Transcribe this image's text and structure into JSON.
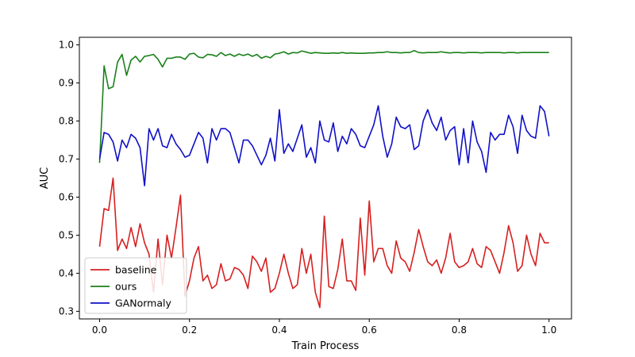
{
  "chart_data": {
    "type": "line",
    "xlabel": "Train Process",
    "ylabel": "AUC",
    "xlim": [
      -0.045,
      1.05
    ],
    "ylim": [
      0.28,
      1.02
    ],
    "grid": false,
    "legend_position": "lower-left",
    "xticks": [
      "0.0",
      "0.2",
      "0.4",
      "0.6",
      "0.8",
      "1.0"
    ],
    "yticks": [
      "0.3",
      "0.4",
      "0.5",
      "0.6",
      "0.7",
      "0.8",
      "0.9",
      "1.0"
    ],
    "series": [
      {
        "name": "baseline",
        "color": "#d62020",
        "x": [
          0.0,
          0.01,
          0.02,
          0.03,
          0.04,
          0.05,
          0.06,
          0.07,
          0.08,
          0.09,
          0.1,
          0.11,
          0.12,
          0.13,
          0.14,
          0.15,
          0.16,
          0.17,
          0.18,
          0.19,
          0.2,
          0.21,
          0.22,
          0.23,
          0.24,
          0.25,
          0.26,
          0.27,
          0.28,
          0.29,
          0.3,
          0.31,
          0.32,
          0.33,
          0.34,
          0.35,
          0.36,
          0.37,
          0.38,
          0.39,
          0.4,
          0.41,
          0.42,
          0.43,
          0.44,
          0.45,
          0.46,
          0.47,
          0.48,
          0.49,
          0.5,
          0.51,
          0.52,
          0.53,
          0.54,
          0.55,
          0.56,
          0.57,
          0.58,
          0.59,
          0.6,
          0.61,
          0.62,
          0.63,
          0.64,
          0.65,
          0.66,
          0.67,
          0.68,
          0.69,
          0.7,
          0.71,
          0.72,
          0.73,
          0.74,
          0.75,
          0.76,
          0.77,
          0.78,
          0.79,
          0.8,
          0.81,
          0.82,
          0.83,
          0.84,
          0.85,
          0.86,
          0.87,
          0.88,
          0.89,
          0.9,
          0.91,
          0.92,
          0.93,
          0.94,
          0.95,
          0.96,
          0.97,
          0.98,
          0.99,
          1.0
        ],
        "values": [
          0.47,
          0.57,
          0.565,
          0.65,
          0.46,
          0.49,
          0.465,
          0.52,
          0.47,
          0.53,
          0.48,
          0.45,
          0.35,
          0.49,
          0.37,
          0.5,
          0.44,
          0.52,
          0.605,
          0.34,
          0.38,
          0.44,
          0.47,
          0.38,
          0.395,
          0.36,
          0.37,
          0.425,
          0.38,
          0.385,
          0.415,
          0.41,
          0.395,
          0.36,
          0.445,
          0.43,
          0.405,
          0.44,
          0.35,
          0.36,
          0.4,
          0.45,
          0.4,
          0.36,
          0.37,
          0.465,
          0.4,
          0.45,
          0.35,
          0.31,
          0.55,
          0.365,
          0.36,
          0.41,
          0.49,
          0.38,
          0.38,
          0.355,
          0.545,
          0.395,
          0.59,
          0.43,
          0.465,
          0.465,
          0.42,
          0.4,
          0.485,
          0.44,
          0.43,
          0.405,
          0.455,
          0.515,
          0.47,
          0.43,
          0.42,
          0.435,
          0.4,
          0.44,
          0.505,
          0.43,
          0.415,
          0.42,
          0.43,
          0.465,
          0.425,
          0.415,
          0.47,
          0.46,
          0.43,
          0.4,
          0.455,
          0.525,
          0.48,
          0.405,
          0.42,
          0.5,
          0.45,
          0.42,
          0.505,
          0.48,
          0.48
        ]
      },
      {
        "name": "ours",
        "color": "#1a801a",
        "x": [
          0.0,
          0.01,
          0.02,
          0.03,
          0.04,
          0.05,
          0.06,
          0.07,
          0.08,
          0.09,
          0.1,
          0.11,
          0.12,
          0.13,
          0.14,
          0.15,
          0.16,
          0.17,
          0.18,
          0.19,
          0.2,
          0.21,
          0.22,
          0.23,
          0.24,
          0.25,
          0.26,
          0.27,
          0.28,
          0.29,
          0.3,
          0.31,
          0.32,
          0.33,
          0.34,
          0.35,
          0.36,
          0.37,
          0.38,
          0.39,
          0.4,
          0.41,
          0.42,
          0.43,
          0.44,
          0.45,
          0.46,
          0.47,
          0.48,
          0.49,
          0.5,
          0.51,
          0.52,
          0.53,
          0.54,
          0.55,
          0.56,
          0.57,
          0.58,
          0.59,
          0.6,
          0.61,
          0.62,
          0.63,
          0.64,
          0.65,
          0.66,
          0.67,
          0.68,
          0.69,
          0.7,
          0.71,
          0.72,
          0.73,
          0.74,
          0.75,
          0.76,
          0.77,
          0.78,
          0.79,
          0.8,
          0.81,
          0.82,
          0.83,
          0.84,
          0.85,
          0.86,
          0.87,
          0.88,
          0.89,
          0.9,
          0.91,
          0.92,
          0.93,
          0.94,
          0.95,
          0.96,
          0.97,
          0.98,
          0.99,
          1.0
        ],
        "values": [
          0.69,
          0.945,
          0.885,
          0.89,
          0.955,
          0.975,
          0.92,
          0.96,
          0.97,
          0.955,
          0.97,
          0.972,
          0.975,
          0.962,
          0.942,
          0.965,
          0.965,
          0.968,
          0.968,
          0.962,
          0.976,
          0.978,
          0.968,
          0.966,
          0.975,
          0.974,
          0.97,
          0.98,
          0.972,
          0.976,
          0.97,
          0.976,
          0.972,
          0.976,
          0.97,
          0.975,
          0.965,
          0.97,
          0.966,
          0.976,
          0.978,
          0.982,
          0.976,
          0.98,
          0.979,
          0.984,
          0.981,
          0.978,
          0.98,
          0.979,
          0.978,
          0.978,
          0.979,
          0.978,
          0.98,
          0.978,
          0.979,
          0.978,
          0.978,
          0.978,
          0.979,
          0.979,
          0.98,
          0.98,
          0.982,
          0.98,
          0.98,
          0.979,
          0.98,
          0.98,
          0.985,
          0.98,
          0.979,
          0.98,
          0.98,
          0.98,
          0.982,
          0.98,
          0.979,
          0.98,
          0.98,
          0.979,
          0.98,
          0.98,
          0.98,
          0.979,
          0.98,
          0.98,
          0.98,
          0.98,
          0.979,
          0.98,
          0.98,
          0.979,
          0.98,
          0.98,
          0.98,
          0.98,
          0.98,
          0.98,
          0.98
        ]
      },
      {
        "name": "GANormaly",
        "color": "#1010c8",
        "x": [
          0.0,
          0.01,
          0.02,
          0.03,
          0.04,
          0.05,
          0.06,
          0.07,
          0.08,
          0.09,
          0.1,
          0.11,
          0.12,
          0.13,
          0.14,
          0.15,
          0.16,
          0.17,
          0.18,
          0.19,
          0.2,
          0.21,
          0.22,
          0.23,
          0.24,
          0.25,
          0.26,
          0.27,
          0.28,
          0.29,
          0.3,
          0.31,
          0.32,
          0.33,
          0.34,
          0.35,
          0.36,
          0.37,
          0.38,
          0.39,
          0.4,
          0.41,
          0.42,
          0.43,
          0.44,
          0.45,
          0.46,
          0.47,
          0.48,
          0.49,
          0.5,
          0.51,
          0.52,
          0.53,
          0.54,
          0.55,
          0.56,
          0.57,
          0.58,
          0.59,
          0.6,
          0.61,
          0.62,
          0.63,
          0.64,
          0.65,
          0.66,
          0.67,
          0.68,
          0.69,
          0.7,
          0.71,
          0.72,
          0.73,
          0.74,
          0.75,
          0.76,
          0.77,
          0.78,
          0.79,
          0.8,
          0.81,
          0.82,
          0.83,
          0.84,
          0.85,
          0.86,
          0.87,
          0.88,
          0.89,
          0.9,
          0.91,
          0.92,
          0.93,
          0.94,
          0.95,
          0.96,
          0.97,
          0.98,
          0.99,
          1.0
        ],
        "values": [
          0.7,
          0.77,
          0.765,
          0.745,
          0.695,
          0.75,
          0.73,
          0.765,
          0.755,
          0.73,
          0.63,
          0.78,
          0.75,
          0.78,
          0.735,
          0.73,
          0.765,
          0.74,
          0.725,
          0.705,
          0.71,
          0.74,
          0.77,
          0.755,
          0.69,
          0.78,
          0.75,
          0.78,
          0.78,
          0.77,
          0.73,
          0.69,
          0.75,
          0.75,
          0.735,
          0.71,
          0.685,
          0.71,
          0.755,
          0.695,
          0.83,
          0.715,
          0.74,
          0.72,
          0.755,
          0.79,
          0.705,
          0.73,
          0.69,
          0.8,
          0.75,
          0.745,
          0.795,
          0.72,
          0.76,
          0.74,
          0.78,
          0.765,
          0.735,
          0.73,
          0.76,
          0.79,
          0.84,
          0.76,
          0.705,
          0.74,
          0.81,
          0.785,
          0.78,
          0.79,
          0.725,
          0.735,
          0.8,
          0.83,
          0.795,
          0.775,
          0.81,
          0.75,
          0.775,
          0.785,
          0.685,
          0.78,
          0.69,
          0.8,
          0.745,
          0.72,
          0.665,
          0.77,
          0.75,
          0.765,
          0.765,
          0.815,
          0.785,
          0.715,
          0.815,
          0.775,
          0.76,
          0.755,
          0.84,
          0.825,
          0.76
        ]
      }
    ]
  }
}
